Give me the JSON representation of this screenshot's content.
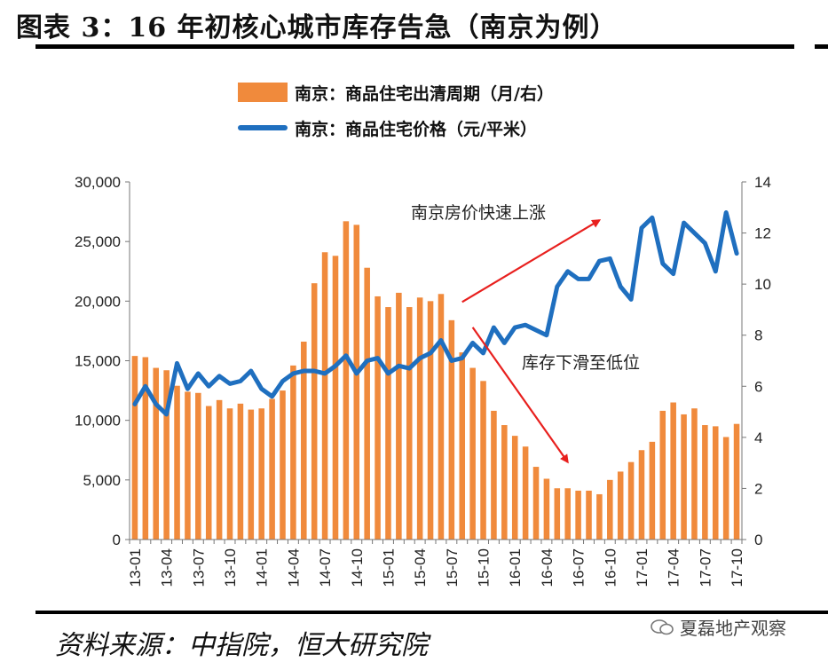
{
  "header": {
    "title": "图表 3：16 年初核心城市库存告急（南京为例）"
  },
  "legend": {
    "bar_label": "南京：商品住宅出清周期（月/右）",
    "line_label": "南京：商品住宅价格（元/平米）"
  },
  "footer": {
    "source": "资料来源：中指院，恒大研究院",
    "watermark": "夏磊地产观察"
  },
  "colors": {
    "bar": "#f08a3c",
    "line": "#1f6fbf",
    "arrow": "#e8201e"
  },
  "chart_data": {
    "type": "bar",
    "x_tick_labels": [
      "13-01",
      "13-04",
      "13-07",
      "13-10",
      "14-01",
      "14-04",
      "14-07",
      "14-10",
      "15-01",
      "15-04",
      "15-07",
      "15-10",
      "16-01",
      "16-04",
      "16-07",
      "16-10",
      "17-01",
      "17-04",
      "17-07",
      "17-10"
    ],
    "categories": [
      "13-01",
      "13-02",
      "13-03",
      "13-04",
      "13-05",
      "13-06",
      "13-07",
      "13-08",
      "13-09",
      "13-10",
      "13-11",
      "13-12",
      "14-01",
      "14-02",
      "14-03",
      "14-04",
      "14-05",
      "14-06",
      "14-07",
      "14-08",
      "14-09",
      "14-10",
      "14-11",
      "14-12",
      "15-01",
      "15-02",
      "15-03",
      "15-04",
      "15-05",
      "15-06",
      "15-07",
      "15-08",
      "15-09",
      "15-10",
      "15-11",
      "15-12",
      "16-01",
      "16-02",
      "16-03",
      "16-04",
      "16-05",
      "16-06",
      "16-07",
      "16-08",
      "16-09",
      "16-10",
      "16-11",
      "16-12",
      "17-01",
      "17-02",
      "17-03",
      "17-04",
      "17-05",
      "17-06",
      "17-07",
      "17-08",
      "17-09",
      "17-10"
    ],
    "series": [
      {
        "name": "南京：商品住宅出清周期（月/右）",
        "type": "bar",
        "axis": "left",
        "values": [
          15400,
          15300,
          14400,
          14200,
          12900,
          12400,
          12300,
          11200,
          11700,
          11000,
          11400,
          10900,
          11000,
          11800,
          12500,
          14600,
          16600,
          21500,
          24100,
          23800,
          26700,
          26400,
          22800,
          20400,
          19500,
          20700,
          19500,
          20300,
          20000,
          20600,
          18400,
          15700,
          14400,
          13300,
          10800,
          9600,
          8700,
          7800,
          6100,
          5100,
          4300,
          4300,
          4100,
          4100,
          3800,
          5000,
          5700,
          6500,
          7500,
          8200,
          10800,
          11500,
          10500,
          11000,
          9600,
          9500,
          8600,
          9700
        ]
      },
      {
        "name": "南京：商品住宅价格（元/平米）",
        "type": "line",
        "axis": "right",
        "values": [
          5.3,
          6.0,
          5.3,
          4.9,
          6.9,
          5.9,
          6.5,
          6.0,
          6.4,
          6.1,
          6.2,
          6.6,
          5.9,
          5.6,
          6.2,
          6.5,
          6.6,
          6.6,
          6.5,
          6.8,
          7.2,
          6.5,
          7.0,
          7.1,
          6.5,
          6.8,
          6.7,
          7.1,
          7.3,
          7.8,
          7.0,
          7.1,
          7.7,
          7.3,
          8.3,
          7.7,
          8.3,
          8.4,
          8.2,
          8.0,
          9.9,
          10.5,
          10.2,
          10.2,
          10.9,
          11.0,
          9.9,
          9.4,
          12.2,
          12.6,
          10.8,
          10.4,
          12.4,
          12.0,
          11.6,
          10.5,
          12.8,
          11.2
        ]
      }
    ],
    "y_left": {
      "ticks": [
        "0",
        "5,000",
        "10,000",
        "15,000",
        "20,000",
        "25,000",
        "30,000"
      ],
      "lim": [
        0,
        30000
      ]
    },
    "y_right": {
      "ticks": [
        "0",
        "2",
        "4",
        "6",
        "8",
        "10",
        "12",
        "14"
      ],
      "lim": [
        0,
        14
      ]
    },
    "annotations": [
      {
        "text": "南京房价快速上涨",
        "arrow_from": [
          "15-08",
          9.3
        ],
        "arrow_to": [
          "16-09",
          12.5
        ]
      },
      {
        "text": "库存下滑至低位",
        "arrow_from": [
          "15-09",
          17800
        ],
        "arrow_to": [
          "16-06",
          6500
        ]
      }
    ],
    "grid": false,
    "legend_position": "top"
  }
}
